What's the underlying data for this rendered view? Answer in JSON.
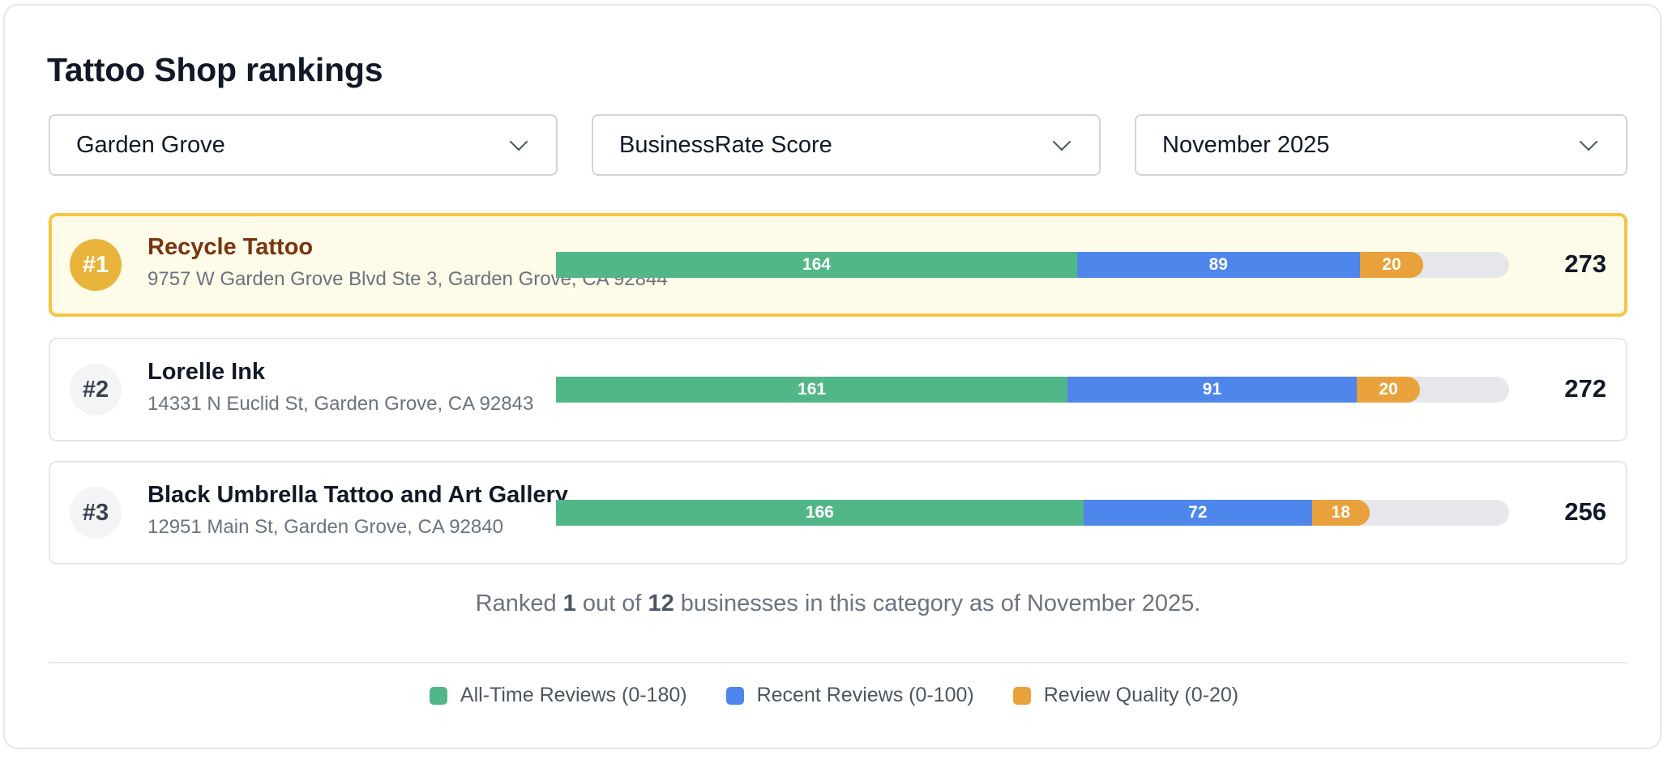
{
  "title": "Tattoo Shop rankings",
  "filters": {
    "location": "Garden Grove",
    "metric": "BusinessRate Score",
    "period": "November 2025"
  },
  "scale_max": 300,
  "colors": {
    "all_time": "#52b788",
    "recent": "#4f86ec",
    "quality": "#e9a23b",
    "highlight_border": "#f5c542",
    "highlight_bg": "#fefce8"
  },
  "rankings": [
    {
      "rank": "#1",
      "name": "Recycle Tattoo",
      "address": "9757 W Garden Grove Blvd Ste 3, Garden Grove, CA 92844",
      "all_time": 164,
      "recent": 89,
      "quality": 20,
      "total": "273",
      "highlighted": true
    },
    {
      "rank": "#2",
      "name": "Lorelle Ink",
      "address": "14331 N Euclid St, Garden Grove, CA 92843",
      "all_time": 161,
      "recent": 91,
      "quality": 20,
      "total": "272",
      "highlighted": false
    },
    {
      "rank": "#3",
      "name": "Black Umbrella Tattoo and Art Gallery",
      "address": "12951 Main St, Garden Grove, CA 92840",
      "all_time": 166,
      "recent": 72,
      "quality": 18,
      "total": "256",
      "highlighted": false
    }
  ],
  "summary": {
    "prefix": "Ranked ",
    "rank": "1",
    "middle": " out of ",
    "count": "12",
    "suffix": " businesses in this category as of November 2025."
  },
  "legend": [
    {
      "label": "All-Time Reviews (0-180)",
      "key": "all_time"
    },
    {
      "label": "Recent Reviews (0-100)",
      "key": "recent"
    },
    {
      "label": "Review Quality (0-20)",
      "key": "quality"
    }
  ]
}
